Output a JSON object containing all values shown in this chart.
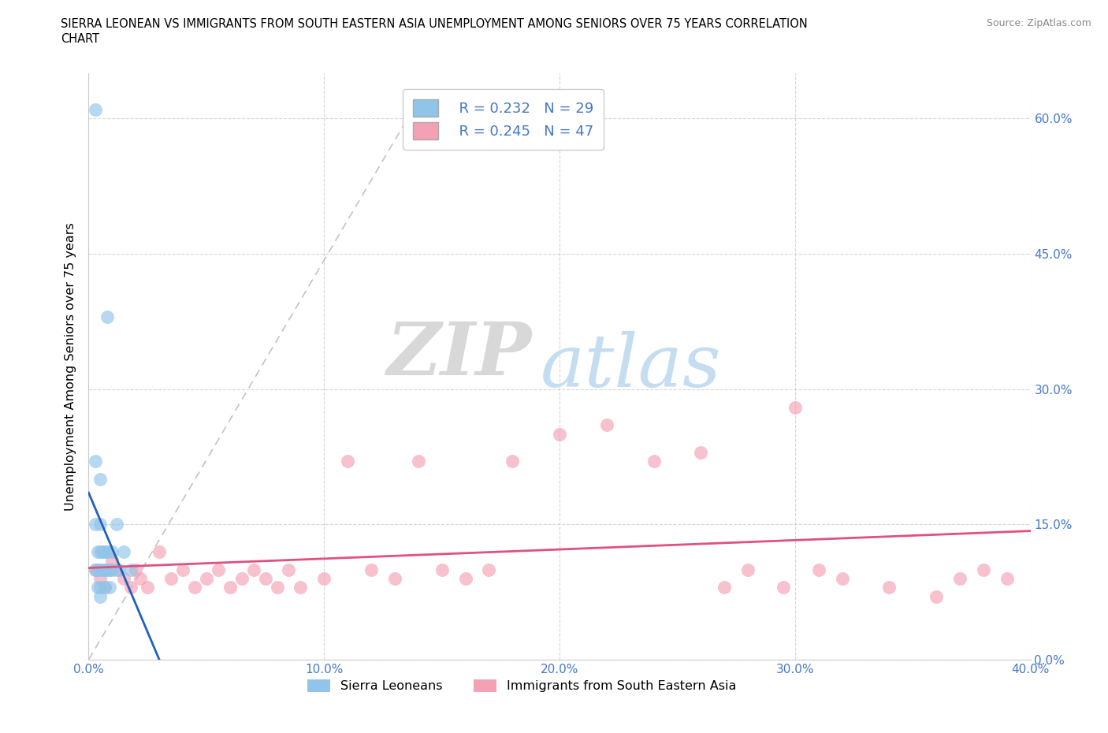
{
  "title_line1": "SIERRA LEONEAN VS IMMIGRANTS FROM SOUTH EASTERN ASIA UNEMPLOYMENT AMONG SENIORS OVER 75 YEARS CORRELATION",
  "title_line2": "CHART",
  "source_text": "Source: ZipAtlas.com",
  "ylabel": "Unemployment Among Seniors over 75 years",
  "xlim": [
    0.0,
    0.4
  ],
  "ylim": [
    0.0,
    0.65
  ],
  "xticks": [
    0.0,
    0.1,
    0.2,
    0.3,
    0.4
  ],
  "xticklabels": [
    "0.0%",
    "10.0%",
    "20.0%",
    "30.0%",
    "40.0%"
  ],
  "yticks": [
    0.0,
    0.15,
    0.3,
    0.45,
    0.6
  ],
  "yticklabels": [
    "0.0%",
    "15.0%",
    "30.0%",
    "45.0%",
    "60.0%"
  ],
  "grid_color": "#cccccc",
  "grid_style": "--",
  "watermark_zip": "ZIP",
  "watermark_atlas": "atlas",
  "legend_r1": "R = 0.232",
  "legend_n1": "N = 29",
  "legend_r2": "R = 0.245",
  "legend_n2": "N = 47",
  "color_blue": "#90c4e8",
  "color_pink": "#f4a0b5",
  "color_blue_line": "#2060c0",
  "color_pink_line": "#e05080",
  "legend_label1": "Sierra Leoneans",
  "legend_label2": "Immigrants from South Eastern Asia",
  "tick_color": "#4477cc",
  "sierra_x": [
    0.003,
    0.003,
    0.003,
    0.003,
    0.004,
    0.004,
    0.004,
    0.005,
    0.005,
    0.005,
    0.005,
    0.005,
    0.005,
    0.006,
    0.006,
    0.007,
    0.007,
    0.007,
    0.008,
    0.008,
    0.008,
    0.009,
    0.009,
    0.01,
    0.01,
    0.012,
    0.013,
    0.015,
    0.018
  ],
  "sierra_y": [
    0.61,
    0.22,
    0.15,
    0.1,
    0.12,
    0.1,
    0.08,
    0.2,
    0.15,
    0.12,
    0.1,
    0.08,
    0.07,
    0.12,
    0.1,
    0.12,
    0.1,
    0.08,
    0.38,
    0.12,
    0.1,
    0.1,
    0.08,
    0.12,
    0.1,
    0.15,
    0.1,
    0.12,
    0.1
  ],
  "sea_x": [
    0.003,
    0.005,
    0.007,
    0.01,
    0.012,
    0.015,
    0.018,
    0.02,
    0.022,
    0.025,
    0.03,
    0.035,
    0.04,
    0.045,
    0.05,
    0.055,
    0.06,
    0.065,
    0.07,
    0.075,
    0.08,
    0.085,
    0.09,
    0.1,
    0.11,
    0.12,
    0.13,
    0.14,
    0.15,
    0.16,
    0.17,
    0.18,
    0.2,
    0.22,
    0.24,
    0.26,
    0.28,
    0.3,
    0.32,
    0.34,
    0.36,
    0.37,
    0.38,
    0.39,
    0.27,
    0.295,
    0.31
  ],
  "sea_y": [
    0.1,
    0.09,
    0.08,
    0.11,
    0.1,
    0.09,
    0.08,
    0.1,
    0.09,
    0.08,
    0.12,
    0.09,
    0.1,
    0.08,
    0.09,
    0.1,
    0.08,
    0.09,
    0.1,
    0.09,
    0.08,
    0.1,
    0.08,
    0.09,
    0.22,
    0.1,
    0.09,
    0.22,
    0.1,
    0.09,
    0.1,
    0.22,
    0.25,
    0.26,
    0.22,
    0.23,
    0.1,
    0.28,
    0.09,
    0.08,
    0.07,
    0.09,
    0.1,
    0.09,
    0.08,
    0.08,
    0.1
  ]
}
